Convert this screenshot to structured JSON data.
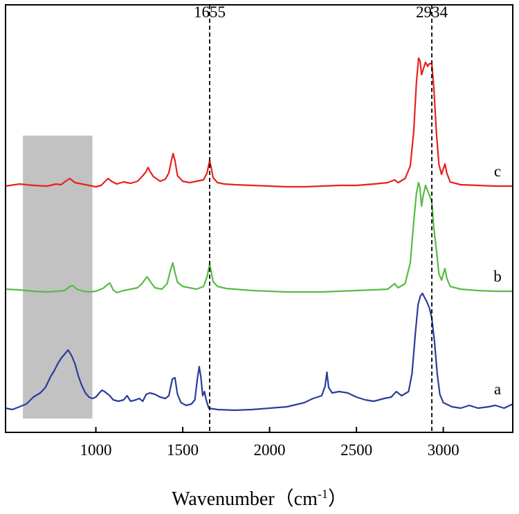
{
  "chart_data": {
    "type": "line",
    "title": "",
    "xlabel": "Wavenumber（cm",
    "xlabel_superscript": "-1",
    "xlabel_close": "）",
    "ylabel": "",
    "xlim": [
      480,
      3400
    ],
    "xticks": [
      1000,
      1500,
      2000,
      2500,
      3000
    ],
    "yaxis_ticks": "none",
    "grid": false,
    "legend": "none",
    "highlight_band": {
      "x": [
        580,
        980
      ],
      "color": "#c2c2c2"
    },
    "annotations": [
      {
        "x": 1655,
        "label": "1655",
        "style": "dashed"
      },
      {
        "x": 2934,
        "label": "2934",
        "style": "dashed"
      }
    ],
    "series": [
      {
        "label": "c",
        "color": "#e8201c",
        "points": [
          [
            480,
            269
          ],
          [
            560,
            266
          ],
          [
            640,
            268
          ],
          [
            720,
            269
          ],
          [
            770,
            266
          ],
          [
            800,
            267
          ],
          [
            820,
            263
          ],
          [
            850,
            258
          ],
          [
            880,
            264
          ],
          [
            920,
            266
          ],
          [
            960,
            268
          ],
          [
            1000,
            270
          ],
          [
            1030,
            268
          ],
          [
            1050,
            263
          ],
          [
            1070,
            258
          ],
          [
            1090,
            262
          ],
          [
            1120,
            266
          ],
          [
            1160,
            263
          ],
          [
            1200,
            265
          ],
          [
            1240,
            262
          ],
          [
            1270,
            254
          ],
          [
            1290,
            248
          ],
          [
            1300,
            242
          ],
          [
            1310,
            247
          ],
          [
            1330,
            255
          ],
          [
            1370,
            262
          ],
          [
            1400,
            259
          ],
          [
            1420,
            250
          ],
          [
            1435,
            232
          ],
          [
            1445,
            222
          ],
          [
            1455,
            232
          ],
          [
            1470,
            254
          ],
          [
            1500,
            262
          ],
          [
            1540,
            264
          ],
          [
            1580,
            262
          ],
          [
            1620,
            260
          ],
          [
            1640,
            250
          ],
          [
            1650,
            238
          ],
          [
            1655,
            232
          ],
          [
            1662,
            240
          ],
          [
            1675,
            257
          ],
          [
            1700,
            264
          ],
          [
            1740,
            266
          ],
          [
            1800,
            267
          ],
          [
            1900,
            268
          ],
          [
            2000,
            269
          ],
          [
            2100,
            270
          ],
          [
            2200,
            270
          ],
          [
            2300,
            269
          ],
          [
            2400,
            268
          ],
          [
            2500,
            268
          ],
          [
            2600,
            266
          ],
          [
            2680,
            264
          ],
          [
            2720,
            260
          ],
          [
            2740,
            264
          ],
          [
            2780,
            258
          ],
          [
            2810,
            240
          ],
          [
            2830,
            190
          ],
          [
            2845,
            120
          ],
          [
            2858,
            84
          ],
          [
            2866,
            88
          ],
          [
            2875,
            108
          ],
          [
            2885,
            100
          ],
          [
            2898,
            90
          ],
          [
            2910,
            96
          ],
          [
            2920,
            92
          ],
          [
            2934,
            92
          ],
          [
            2946,
            128
          ],
          [
            2960,
            190
          ],
          [
            2975,
            238
          ],
          [
            2990,
            252
          ],
          [
            3000,
            244
          ],
          [
            3010,
            237
          ],
          [
            3020,
            250
          ],
          [
            3040,
            263
          ],
          [
            3100,
            267
          ],
          [
            3200,
            268
          ],
          [
            3300,
            269
          ],
          [
            3400,
            269
          ]
        ]
      },
      {
        "label": "b",
        "color": "#55bb44",
        "points": [
          [
            480,
            418
          ],
          [
            560,
            419
          ],
          [
            640,
            421
          ],
          [
            720,
            422
          ],
          [
            780,
            421
          ],
          [
            820,
            420
          ],
          [
            850,
            414
          ],
          [
            870,
            413
          ],
          [
            890,
            418
          ],
          [
            930,
            421
          ],
          [
            960,
            422
          ],
          [
            1000,
            421
          ],
          [
            1040,
            417
          ],
          [
            1070,
            411
          ],
          [
            1080,
            409
          ],
          [
            1100,
            419
          ],
          [
            1120,
            423
          ],
          [
            1160,
            420
          ],
          [
            1200,
            418
          ],
          [
            1240,
            416
          ],
          [
            1265,
            410
          ],
          [
            1280,
            405
          ],
          [
            1295,
            400
          ],
          [
            1310,
            406
          ],
          [
            1340,
            416
          ],
          [
            1380,
            418
          ],
          [
            1410,
            410
          ],
          [
            1430,
            390
          ],
          [
            1443,
            380
          ],
          [
            1455,
            394
          ],
          [
            1470,
            408
          ],
          [
            1500,
            414
          ],
          [
            1540,
            416
          ],
          [
            1580,
            418
          ],
          [
            1620,
            414
          ],
          [
            1640,
            400
          ],
          [
            1650,
            388
          ],
          [
            1655,
            382
          ],
          [
            1662,
            390
          ],
          [
            1675,
            407
          ],
          [
            1700,
            414
          ],
          [
            1750,
            417
          ],
          [
            1800,
            418
          ],
          [
            1900,
            420
          ],
          [
            2000,
            421
          ],
          [
            2100,
            422
          ],
          [
            2200,
            422
          ],
          [
            2300,
            422
          ],
          [
            2400,
            421
          ],
          [
            2500,
            420
          ],
          [
            2600,
            419
          ],
          [
            2680,
            418
          ],
          [
            2720,
            410
          ],
          [
            2740,
            416
          ],
          [
            2780,
            410
          ],
          [
            2810,
            380
          ],
          [
            2830,
            320
          ],
          [
            2845,
            280
          ],
          [
            2858,
            264
          ],
          [
            2866,
            272
          ],
          [
            2875,
            298
          ],
          [
            2885,
            282
          ],
          [
            2898,
            268
          ],
          [
            2910,
            276
          ],
          [
            2920,
            282
          ],
          [
            2934,
            292
          ],
          [
            2946,
            330
          ],
          [
            2960,
            360
          ],
          [
            2975,
            396
          ],
          [
            2990,
            405
          ],
          [
            3000,
            396
          ],
          [
            3010,
            388
          ],
          [
            3020,
            402
          ],
          [
            3040,
            414
          ],
          [
            3100,
            418
          ],
          [
            3200,
            420
          ],
          [
            3300,
            421
          ],
          [
            3400,
            421
          ]
        ]
      },
      {
        "label": "a",
        "color": "#2a3c9c",
        "points": [
          [
            480,
            590
          ],
          [
            520,
            592
          ],
          [
            560,
            588
          ],
          [
            600,
            584
          ],
          [
            640,
            574
          ],
          [
            680,
            568
          ],
          [
            710,
            560
          ],
          [
            740,
            544
          ],
          [
            760,
            536
          ],
          [
            780,
            526
          ],
          [
            800,
            518
          ],
          [
            820,
            512
          ],
          [
            840,
            506
          ],
          [
            860,
            514
          ],
          [
            880,
            526
          ],
          [
            900,
            544
          ],
          [
            920,
            558
          ],
          [
            940,
            568
          ],
          [
            960,
            574
          ],
          [
            980,
            576
          ],
          [
            1000,
            574
          ],
          [
            1020,
            568
          ],
          [
            1035,
            564
          ],
          [
            1050,
            566
          ],
          [
            1080,
            572
          ],
          [
            1100,
            578
          ],
          [
            1130,
            580
          ],
          [
            1160,
            578
          ],
          [
            1180,
            572
          ],
          [
            1190,
            576
          ],
          [
            1200,
            580
          ],
          [
            1230,
            578
          ],
          [
            1250,
            576
          ],
          [
            1270,
            580
          ],
          [
            1290,
            570
          ],
          [
            1310,
            568
          ],
          [
            1340,
            570
          ],
          [
            1370,
            574
          ],
          [
            1400,
            576
          ],
          [
            1420,
            572
          ],
          [
            1440,
            548
          ],
          [
            1455,
            546
          ],
          [
            1470,
            570
          ],
          [
            1490,
            582
          ],
          [
            1520,
            586
          ],
          [
            1550,
            584
          ],
          [
            1570,
            578
          ],
          [
            1585,
            546
          ],
          [
            1595,
            530
          ],
          [
            1605,
            546
          ],
          [
            1615,
            572
          ],
          [
            1625,
            566
          ],
          [
            1635,
            578
          ],
          [
            1650,
            590
          ],
          [
            1700,
            592
          ],
          [
            1800,
            593
          ],
          [
            1900,
            592
          ],
          [
            2000,
            590
          ],
          [
            2100,
            588
          ],
          [
            2200,
            582
          ],
          [
            2250,
            576
          ],
          [
            2300,
            572
          ],
          [
            2320,
            558
          ],
          [
            2330,
            538
          ],
          [
            2340,
            560
          ],
          [
            2360,
            568
          ],
          [
            2400,
            566
          ],
          [
            2450,
            568
          ],
          [
            2500,
            574
          ],
          [
            2550,
            578
          ],
          [
            2600,
            580
          ],
          [
            2660,
            576
          ],
          [
            2700,
            574
          ],
          [
            2730,
            566
          ],
          [
            2760,
            572
          ],
          [
            2800,
            566
          ],
          [
            2820,
            540
          ],
          [
            2840,
            480
          ],
          [
            2855,
            440
          ],
          [
            2868,
            428
          ],
          [
            2880,
            424
          ],
          [
            2892,
            430
          ],
          [
            2905,
            436
          ],
          [
            2920,
            445
          ],
          [
            2934,
            460
          ],
          [
            2950,
            495
          ],
          [
            2965,
            540
          ],
          [
            2980,
            570
          ],
          [
            3000,
            582
          ],
          [
            3050,
            588
          ],
          [
            3100,
            590
          ],
          [
            3150,
            586
          ],
          [
            3200,
            590
          ],
          [
            3260,
            588
          ],
          [
            3300,
            586
          ],
          [
            3350,
            590
          ],
          [
            3400,
            584
          ]
        ]
      }
    ]
  }
}
